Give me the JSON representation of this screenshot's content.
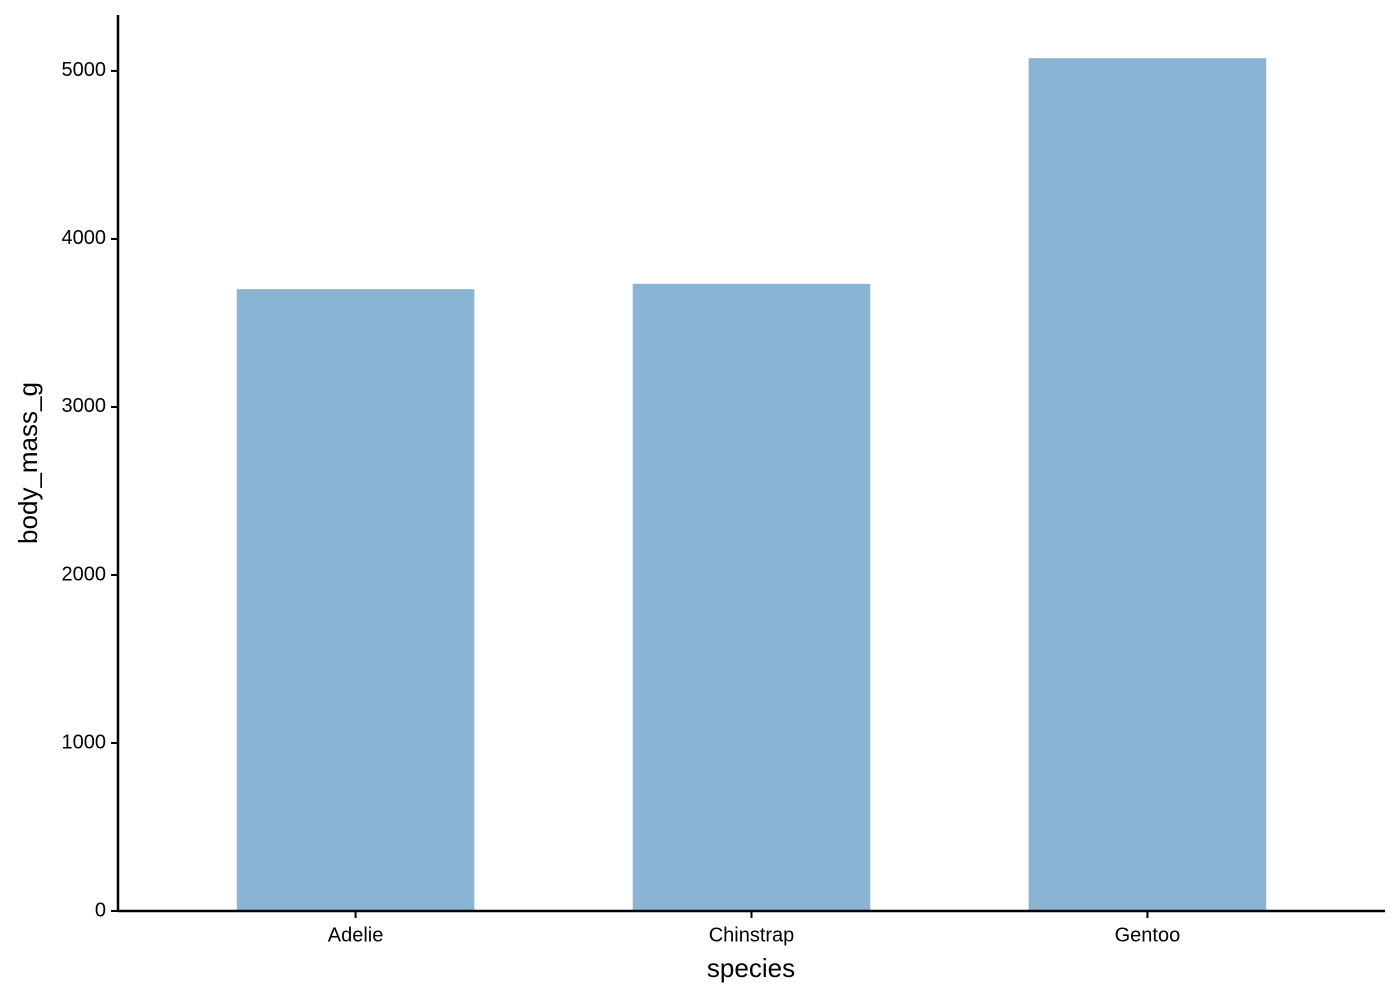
{
  "chart_data": {
    "type": "bar",
    "x_label": "species",
    "y_label": "body_mass_g",
    "categories": [
      "Adelie",
      "Chinstrap",
      "Gentoo"
    ],
    "values": [
      3701,
      3733,
      5076
    ],
    "color": "#89b4d4",
    "ylim": [
      0,
      5333
    ],
    "yticks": [
      0,
      1000,
      2000,
      3000,
      4000,
      5000
    ],
    "grid": false
  }
}
